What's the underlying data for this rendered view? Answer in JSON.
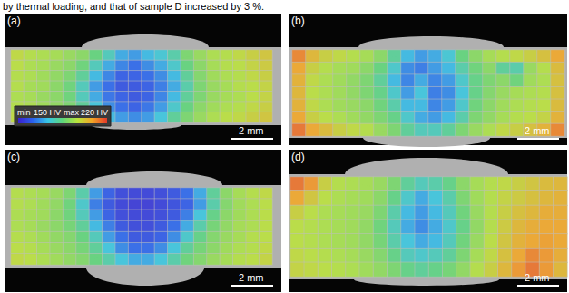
{
  "caption": "by thermal loading, and that of sample D increased by 3 %.",
  "color_bar": {
    "range": [
      150,
      220
    ],
    "min_label": "min",
    "max_label": "max",
    "ticks": [
      {
        "value": 150,
        "label": "150 HV"
      },
      {
        "value": 220,
        "label": "220 HV"
      }
    ]
  },
  "chart_data": [
    {
      "type": "heatmap",
      "title": "(a)",
      "scale_bar": "2 mm",
      "tick_labels": false,
      "cells": [
        [
          198,
          196,
          195,
          194,
          192,
          190,
          185,
          178,
          170,
          168,
          172,
          175,
          180,
          188,
          192,
          195,
          196,
          198,
          200,
          202
        ],
        [
          197,
          195,
          194,
          192,
          190,
          186,
          178,
          170,
          165,
          162,
          166,
          170,
          176,
          185,
          190,
          194,
          196,
          197,
          199,
          201
        ],
        [
          196,
          195,
          193,
          191,
          188,
          182,
          172,
          165,
          160,
          160,
          162,
          166,
          172,
          182,
          189,
          193,
          195,
          196,
          198,
          200
        ],
        [
          196,
          194,
          193,
          190,
          186,
          178,
          168,
          162,
          158,
          158,
          160,
          164,
          170,
          180,
          188,
          192,
          194,
          196,
          197,
          199
        ],
        [
          195,
          194,
          192,
          190,
          186,
          178,
          170,
          163,
          160,
          158,
          160,
          165,
          172,
          182,
          188,
          192,
          194,
          195,
          197,
          199
        ],
        [
          196,
          195,
          193,
          191,
          188,
          182,
          174,
          166,
          162,
          160,
          163,
          168,
          176,
          185,
          190,
          193,
          195,
          196,
          198,
          200
        ],
        [
          198,
          197,
          195,
          193,
          190,
          186,
          180,
          172,
          168,
          166,
          168,
          174,
          182,
          188,
          192,
          195,
          197,
          198,
          200,
          202
        ]
      ]
    },
    {
      "type": "heatmap",
      "title": "(b)",
      "scale_bar": "2 mm",
      "tick_labels": false,
      "cells": [
        [
          212,
          205,
          200,
          198,
          196,
          194,
          190,
          182,
          172,
          168,
          170,
          175,
          185,
          190,
          194,
          196,
          198,
          200,
          203,
          208
        ],
        [
          208,
          200,
          196,
          194,
          193,
          190,
          185,
          176,
          166,
          164,
          168,
          172,
          180,
          186,
          190,
          182,
          180,
          192,
          196,
          204
        ],
        [
          206,
          198,
          195,
          193,
          191,
          188,
          182,
          172,
          165,
          170,
          165,
          168,
          176,
          184,
          188,
          190,
          186,
          193,
          195,
          203
        ],
        [
          205,
          197,
          195,
          193,
          191,
          188,
          184,
          176,
          168,
          174,
          164,
          166,
          174,
          184,
          189,
          192,
          194,
          195,
          196,
          203
        ],
        [
          206,
          198,
          195,
          193,
          192,
          190,
          186,
          180,
          172,
          172,
          165,
          168,
          176,
          186,
          190,
          193,
          195,
          196,
          197,
          204
        ],
        [
          208,
          200,
          197,
          195,
          193,
          191,
          188,
          184,
          176,
          170,
          168,
          172,
          180,
          188,
          191,
          194,
          196,
          197,
          199,
          206
        ],
        [
          214,
          208,
          204,
          200,
          198,
          196,
          192,
          188,
          182,
          178,
          178,
          182,
          188,
          192,
          195,
          198,
          200,
          203,
          206,
          212
        ]
      ]
    },
    {
      "type": "heatmap",
      "title": "(c)",
      "scale_bar": "2 mm",
      "tick_labels": false,
      "cells": [
        [
          196,
          195,
          194,
          192,
          188,
          180,
          168,
          160,
          156,
          155,
          155,
          156,
          158,
          162,
          170,
          182,
          190,
          194,
          196,
          198
        ],
        [
          196,
          195,
          193,
          191,
          186,
          176,
          164,
          158,
          155,
          154,
          154,
          155,
          157,
          160,
          168,
          180,
          189,
          193,
          195,
          197
        ],
        [
          195,
          194,
          193,
          190,
          186,
          178,
          168,
          160,
          156,
          155,
          155,
          156,
          158,
          164,
          174,
          184,
          190,
          193,
          195,
          197
        ],
        [
          195,
          194,
          192,
          190,
          187,
          182,
          172,
          164,
          158,
          156,
          156,
          158,
          162,
          170,
          180,
          187,
          191,
          194,
          195,
          197
        ],
        [
          196,
          195,
          193,
          191,
          189,
          185,
          178,
          168,
          162,
          158,
          158,
          160,
          166,
          176,
          184,
          189,
          192,
          194,
          196,
          197
        ],
        [
          197,
          196,
          194,
          192,
          190,
          187,
          182,
          174,
          166,
          162,
          162,
          166,
          174,
          182,
          187,
          190,
          193,
          195,
          196,
          198
        ],
        [
          198,
          197,
          195,
          193,
          191,
          189,
          185,
          180,
          174,
          170,
          170,
          174,
          180,
          186,
          189,
          192,
          194,
          196,
          197,
          199
        ]
      ]
    },
    {
      "type": "heatmap",
      "title": "(d)",
      "scale_bar": "2 mm",
      "tick_labels": false,
      "cells": [
        [
          214,
          210,
          200,
          196,
          195,
          194,
          192,
          188,
          182,
          178,
          180,
          184,
          190,
          194,
          196,
          198,
          200,
          202,
          204,
          205
        ],
        [
          208,
          202,
          197,
          195,
          194,
          193,
          190,
          184,
          176,
          170,
          174,
          180,
          188,
          193,
          196,
          199,
          201,
          203,
          205,
          206
        ],
        [
          200,
          197,
          195,
          194,
          193,
          192,
          188,
          180,
          172,
          168,
          172,
          178,
          186,
          192,
          196,
          200,
          203,
          205,
          207,
          207
        ],
        [
          197,
          196,
          195,
          194,
          193,
          191,
          186,
          178,
          170,
          166,
          170,
          176,
          184,
          191,
          196,
          201,
          205,
          207,
          208,
          208
        ],
        [
          197,
          196,
          195,
          194,
          193,
          191,
          187,
          180,
          174,
          170,
          172,
          178,
          186,
          192,
          197,
          202,
          206,
          208,
          209,
          208
        ],
        [
          198,
          197,
          196,
          195,
          194,
          192,
          189,
          184,
          178,
          176,
          178,
          182,
          188,
          194,
          198,
          203,
          208,
          212,
          210,
          207
        ],
        [
          199,
          198,
          197,
          196,
          195,
          193,
          191,
          188,
          184,
          182,
          184,
          187,
          191,
          196,
          200,
          205,
          210,
          214,
          210,
          205
        ]
      ]
    }
  ]
}
